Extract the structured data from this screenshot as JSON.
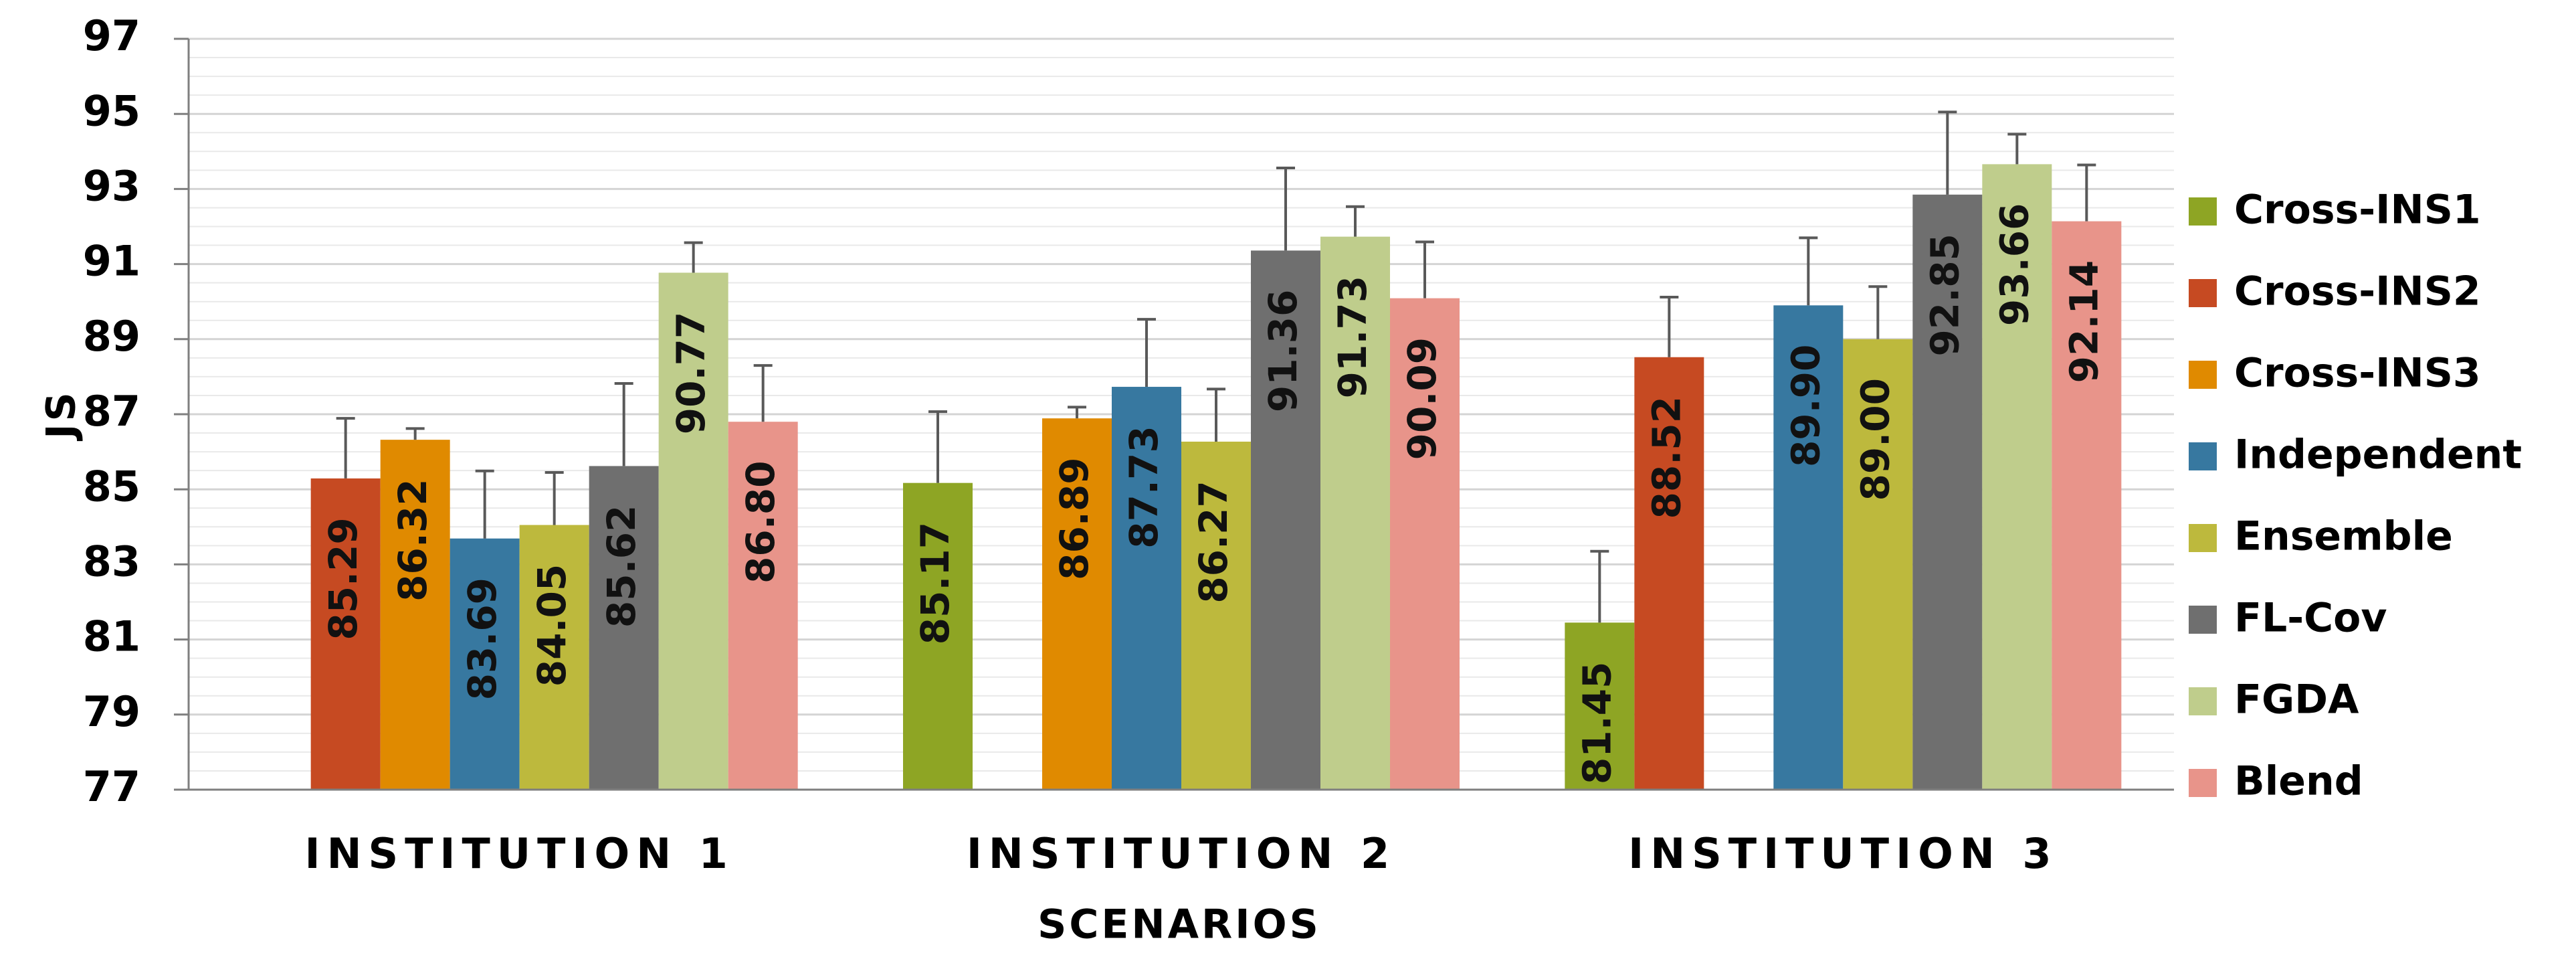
{
  "chart_data": {
    "type": "bar",
    "title": "",
    "xlabel": "SCENARIOS",
    "ylabel": "JS",
    "ylim": [
      77,
      97
    ],
    "yticks": [
      "77",
      "79",
      "81",
      "83",
      "85",
      "87",
      "89",
      "91",
      "93",
      "95",
      "97"
    ],
    "grid": true,
    "legend_position": "right",
    "categories": [
      "INSTITUTION 1",
      "INSTITUTION 2",
      "INSTITUTION 3"
    ],
    "series": [
      {
        "name": "Cross-INS1",
        "color": "#8ea524",
        "values": [
          null,
          85.17,
          81.45
        ],
        "labels": [
          "",
          "85.17",
          "81.45"
        ],
        "errors": [
          null,
          1.9,
          1.9
        ]
      },
      {
        "name": "Cross-INS2",
        "color": "#c64a22",
        "values": [
          85.29,
          null,
          88.52
        ],
        "labels": [
          "85.29",
          "",
          "88.52"
        ],
        "errors": [
          1.6,
          null,
          1.6
        ]
      },
      {
        "name": "Cross-INS3",
        "color": "#e08a00",
        "values": [
          86.32,
          86.89,
          null
        ],
        "labels": [
          "86.32",
          "86.89",
          ""
        ],
        "errors": [
          0.3,
          0.3,
          null
        ]
      },
      {
        "name": "Independent",
        "color": "#3778a0",
        "values": [
          83.69,
          87.73,
          89.9
        ],
        "labels": [
          "83.69",
          "87.73",
          "89.90"
        ],
        "errors": [
          1.8,
          1.8,
          1.8
        ]
      },
      {
        "name": "Ensemble",
        "color": "#bdb93d",
        "values": [
          84.05,
          86.27,
          89.0
        ],
        "labels": [
          "84.05",
          "86.27",
          "89.00"
        ],
        "errors": [
          1.4,
          1.4,
          1.4
        ]
      },
      {
        "name": "FL-Cov",
        "color": "#6f6f6f",
        "values": [
          85.62,
          91.36,
          92.85
        ],
        "labels": [
          "85.62",
          "91.36",
          "92.85"
        ],
        "errors": [
          2.2,
          2.2,
          2.2
        ]
      },
      {
        "name": "FGDA",
        "color": "#bfcd8c",
        "values": [
          90.77,
          91.73,
          93.66
        ],
        "labels": [
          "90.77",
          "91.73",
          "93.66"
        ],
        "errors": [
          0.8,
          0.8,
          0.8
        ]
      },
      {
        "name": "Blend",
        "color": "#e8948a",
        "values": [
          86.8,
          90.09,
          92.14
        ],
        "labels": [
          "86.80",
          "90.09",
          "92.14"
        ],
        "errors": [
          1.5,
          1.5,
          1.5
        ]
      }
    ]
  }
}
